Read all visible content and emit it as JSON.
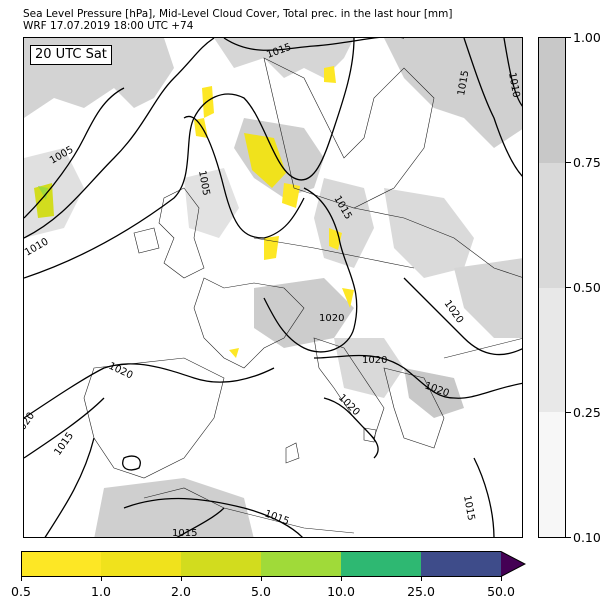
{
  "title": {
    "line1": "Sea Level Pressure [hPa], Mid-Level Cloud Cover, Total prec. in the last hour [mm]",
    "line2": "WRF 17.07.2019 18:00 UTC +74"
  },
  "map": {
    "time_label": "20 UTC Sat",
    "isobar_labels": [
      "1015",
      "1015",
      "1010",
      "1005",
      "1005",
      "1010",
      "1015",
      "1020",
      "1020",
      "1020",
      "1020",
      "1020",
      "1020",
      "1015",
      "1020",
      "1015",
      "1015",
      "1015"
    ]
  },
  "cloud_colorbar": {
    "ticks": [
      "0.10",
      "0.25",
      "0.50",
      "0.75",
      "1.00"
    ],
    "colors": [
      "#f7f7f7",
      "#e8e8e8",
      "#d9d9d9",
      "#c8c8c8"
    ]
  },
  "precip_colorbar": {
    "ticks": [
      "0.5",
      "1.0",
      "2.0",
      "5.0",
      "10.0",
      "25.0",
      "50.0"
    ],
    "colors": [
      "#fde725",
      "#f0e21c",
      "#d2dc1e",
      "#a0da39",
      "#2eb872",
      "#3e4c8a",
      "#440154"
    ]
  }
}
